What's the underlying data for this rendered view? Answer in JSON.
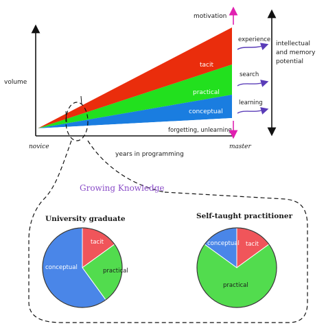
{
  "axes": {
    "ylabel": "volume",
    "xlabel": "years in programming",
    "x_start": "novice",
    "x_end": "master"
  },
  "layers": [
    {
      "key": "forgetting",
      "label": "forgetting, unlearning",
      "color": "#ffffff"
    },
    {
      "key": "conceptual",
      "label": "conceptual",
      "color": "#1a7de0"
    },
    {
      "key": "practical",
      "label": "practical",
      "color": "#22e01e"
    },
    {
      "key": "tacit",
      "label": "tacit",
      "color": "#ea2d0c"
    }
  ],
  "right_labels": {
    "motivation": "motivation",
    "experience": "experience",
    "search": "search",
    "learning": "learning",
    "capacity": [
      "intellectual",
      "and memory",
      "potential"
    ]
  },
  "section_title": "Growing Knowledge",
  "pies": [
    {
      "title": "University graduate",
      "slices": [
        {
          "label": "tacit",
          "value": 0.15,
          "color": "#f0555a"
        },
        {
          "label": "practical",
          "value": 0.25,
          "color": "#52dc4e"
        },
        {
          "label": "conceptual",
          "value": 0.6,
          "color": "#4a86e8"
        }
      ]
    },
    {
      "title": "Self-taught practitioner",
      "slices": [
        {
          "label": "tacit",
          "value": 0.15,
          "color": "#f0555a"
        },
        {
          "label": "practical",
          "value": 0.7,
          "color": "#52dc4e"
        },
        {
          "label": "conceptual",
          "value": 0.15,
          "color": "#4a86e8"
        }
      ]
    }
  ],
  "colors": {
    "arrow_pink": "#e020b0",
    "arrow_purple": "#5a3cb8",
    "title_purple": "#8a4cc8"
  }
}
